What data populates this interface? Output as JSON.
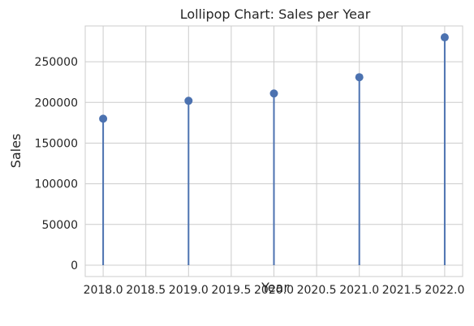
{
  "chart_data": {
    "type": "scatter",
    "title": "Lollipop Chart: Sales per Year",
    "xlabel": "Year",
    "ylabel": "Sales",
    "x": [
      2018,
      2019,
      2020,
      2021,
      2022
    ],
    "y": [
      180000,
      202000,
      211000,
      231000,
      280000
    ],
    "xlim": [
      2017.79,
      2022.21
    ],
    "ylim": [
      -14000,
      294000
    ],
    "xticks": [
      2018.0,
      2018.5,
      2019.0,
      2019.5,
      2020.0,
      2020.5,
      2021.0,
      2021.5,
      2022.0
    ],
    "xtick_labels": [
      "2018.0",
      "2018.5",
      "2019.0",
      "2019.5",
      "2020.0",
      "2020.5",
      "2021.0",
      "2021.5",
      "2022.0"
    ],
    "yticks": [
      0,
      50000,
      100000,
      150000,
      200000,
      250000
    ],
    "ytick_labels": [
      "0",
      "50000",
      "100000",
      "150000",
      "200000",
      "250000"
    ],
    "grid": true,
    "colors": {
      "series": "#4c72b0",
      "grid": "#cccccc",
      "spine": "#cccccc",
      "background": "#ffffff"
    }
  }
}
